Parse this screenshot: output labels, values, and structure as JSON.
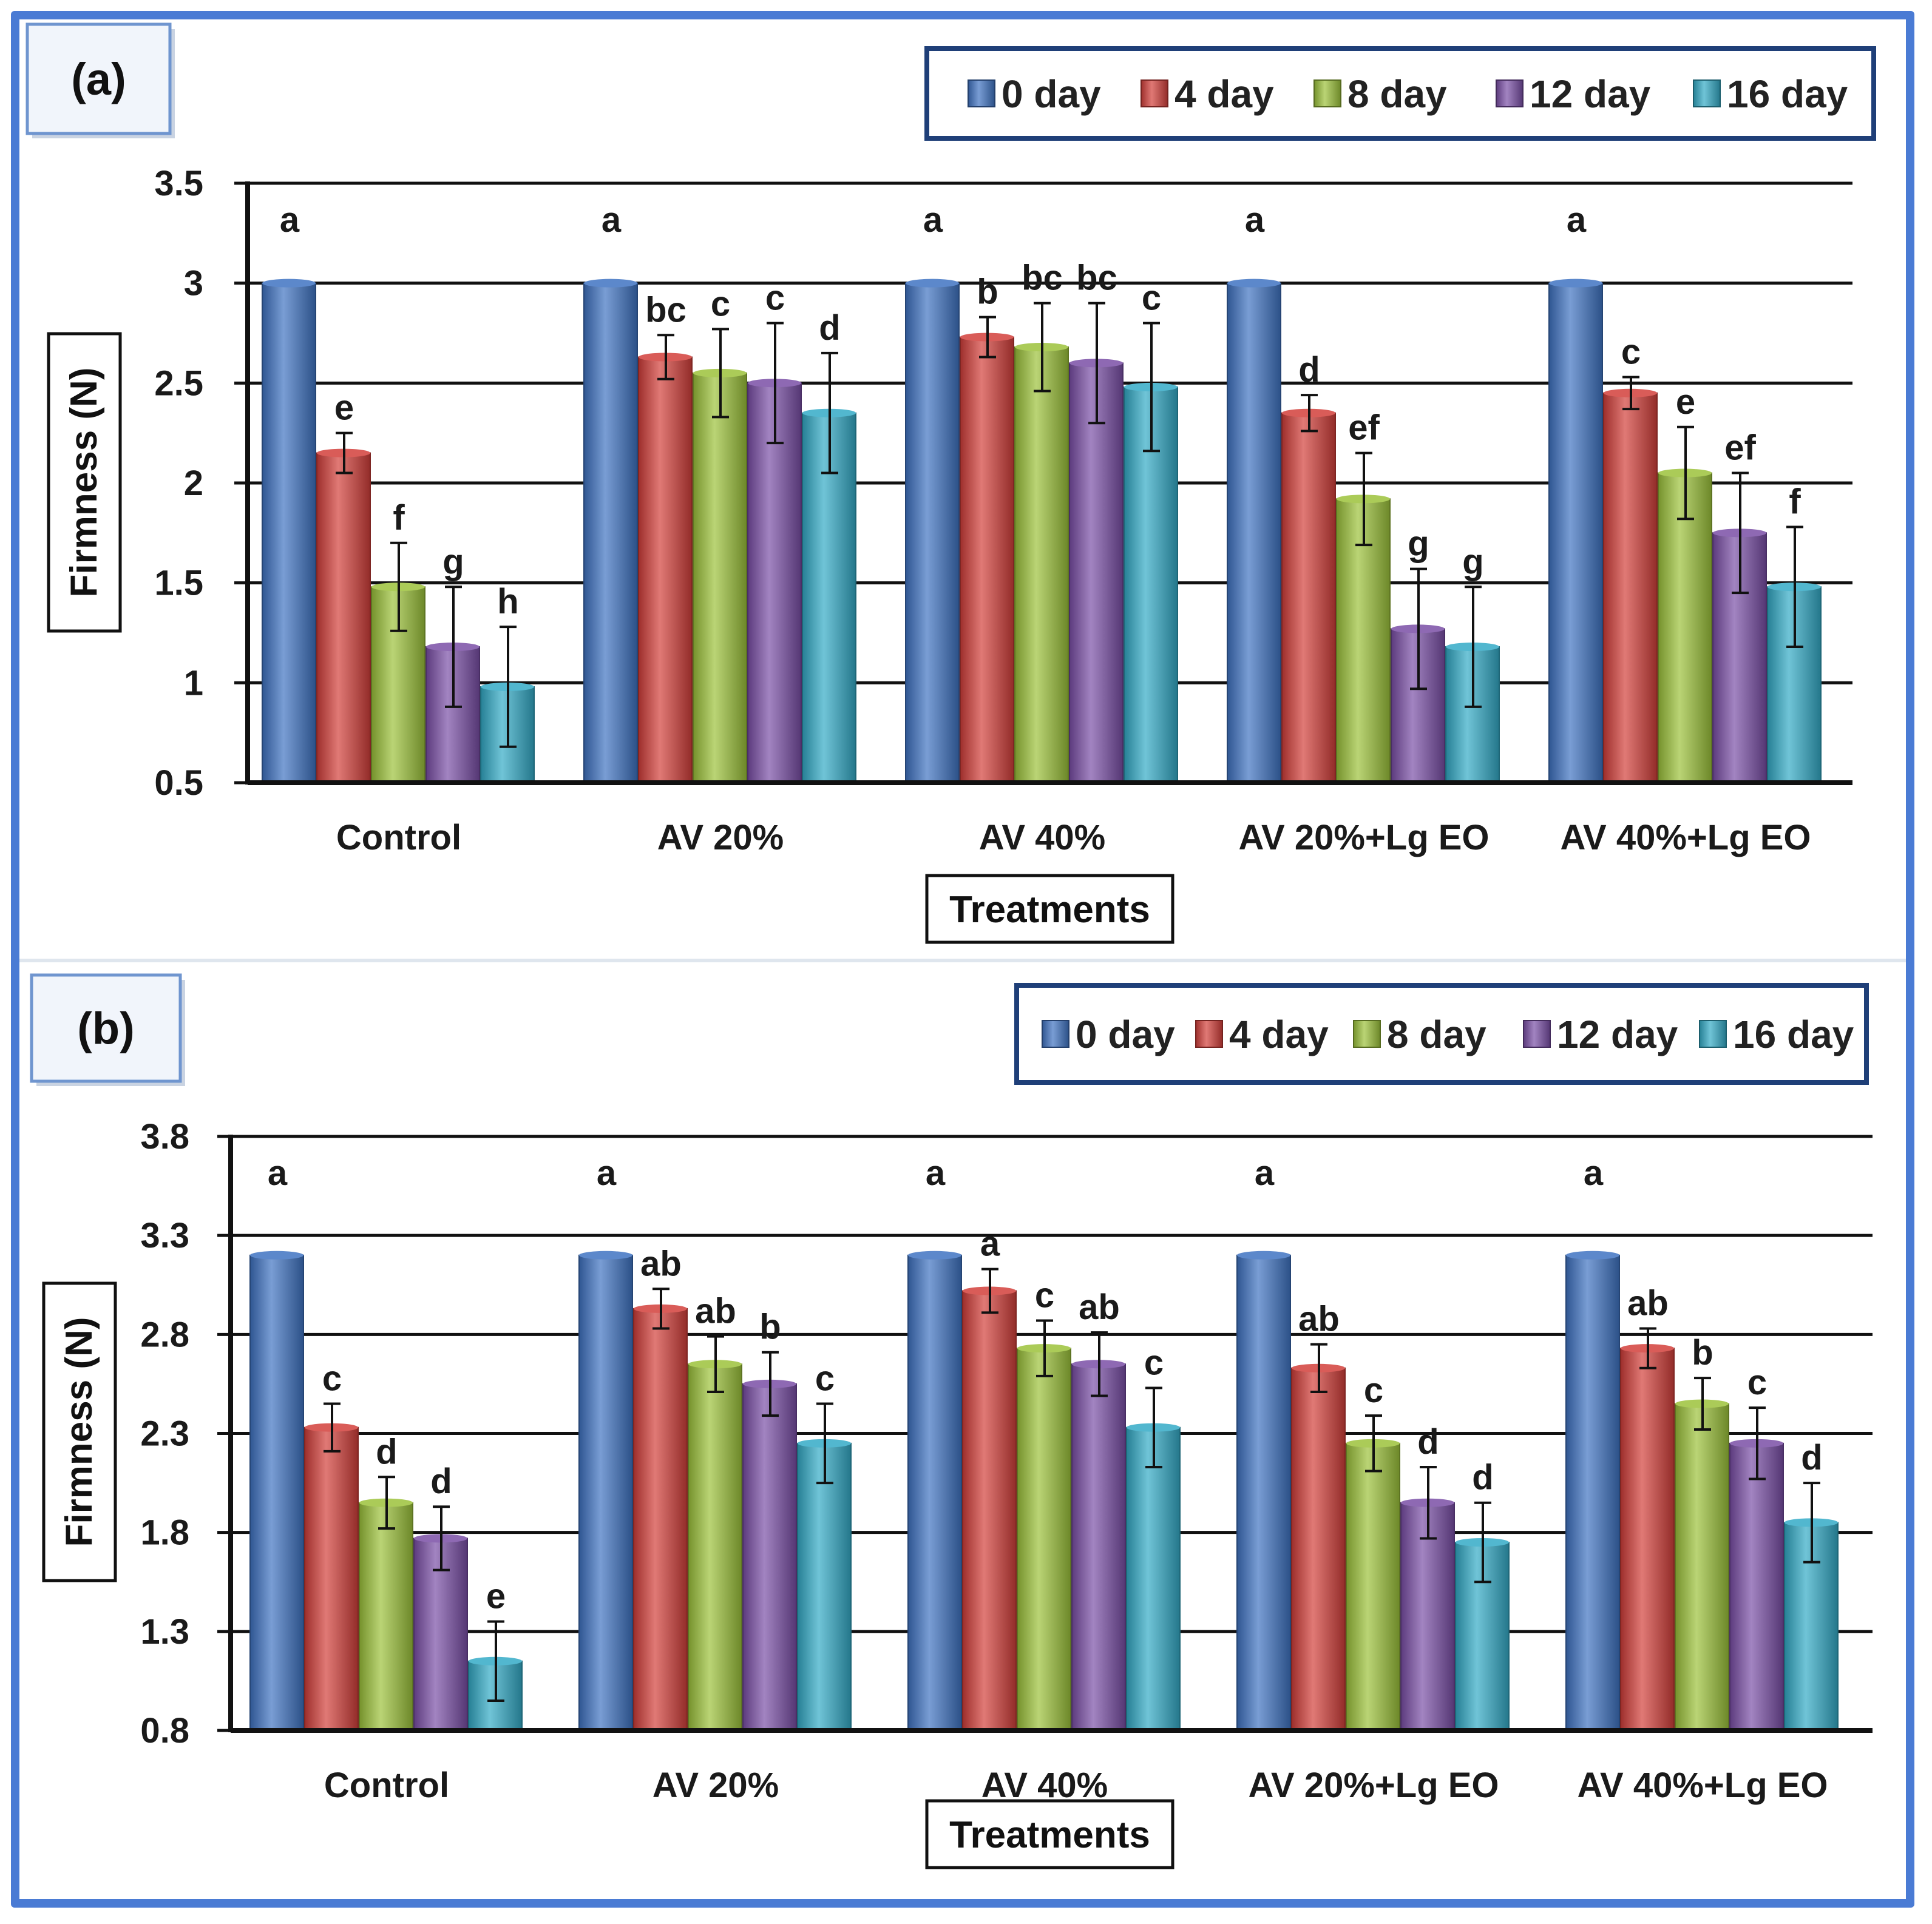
{
  "colors": {
    "frame": "#4a7bd4",
    "legend_border": "#1f3f78",
    "series": [
      "#3f73c2",
      "#d23f3a",
      "#9cc23a",
      "#7a4fa6",
      "#33aac6"
    ]
  },
  "chart_data": [
    {
      "type": "bar",
      "panel_label": "(a)",
      "ylabel": "Firmness (N)",
      "xlabel": "Treatments",
      "ylim": [
        0.5,
        3.5
      ],
      "yticks": [
        "0.5",
        "1",
        "1.5",
        "2",
        "2.5",
        "3",
        "3.5"
      ],
      "grid": true,
      "legend_position": "top-right",
      "categories": [
        "Control",
        "AV 20%",
        "AV 40%",
        "AV 20%+Lg EO",
        "AV 40%+Lg EO"
      ],
      "series": [
        {
          "name": "0 day",
          "values": [
            3.0,
            3.0,
            3.0,
            3.0,
            3.0
          ],
          "errors": [
            0,
            0,
            0,
            0,
            0
          ],
          "letters": [
            "a",
            "a",
            "a",
            "a",
            "a"
          ]
        },
        {
          "name": "4 day",
          "values": [
            2.15,
            2.63,
            2.73,
            2.35,
            2.45
          ],
          "errors": [
            0.1,
            0.11,
            0.1,
            0.09,
            0.08
          ],
          "letters": [
            "e",
            "bc",
            "b",
            "d",
            "c"
          ]
        },
        {
          "name": "8 day",
          "values": [
            1.48,
            2.55,
            2.68,
            1.92,
            2.05
          ],
          "errors": [
            0.22,
            0.22,
            0.22,
            0.23,
            0.23
          ],
          "letters": [
            "f",
            "c",
            "bc",
            "ef",
            "e"
          ]
        },
        {
          "name": "12 day",
          "values": [
            1.18,
            2.5,
            2.6,
            1.27,
            1.75
          ],
          "errors": [
            0.3,
            0.3,
            0.3,
            0.3,
            0.3
          ],
          "letters": [
            "g",
            "c",
            "bc",
            "g",
            "ef"
          ]
        },
        {
          "name": "16 day",
          "values": [
            0.98,
            2.35,
            2.48,
            1.18,
            1.48
          ],
          "errors": [
            0.3,
            0.3,
            0.32,
            0.3,
            0.3
          ],
          "letters": [
            "h",
            "d",
            "c",
            "g",
            "f"
          ]
        }
      ]
    },
    {
      "type": "bar",
      "panel_label": "(b)",
      "ylabel": "Firmness (N)",
      "xlabel": "Treatments",
      "ylim": [
        0.8,
        3.8
      ],
      "yticks": [
        "0.8",
        "1.3",
        "1.8",
        "2.3",
        "2.8",
        "3.3",
        "3.8"
      ],
      "grid": true,
      "legend_position": "top-right",
      "categories": [
        "Control",
        "AV 20%",
        "AV 40%",
        "AV 20%+Lg EO",
        "AV 40%+Lg EO"
      ],
      "series": [
        {
          "name": "0 day",
          "values": [
            3.2,
            3.2,
            3.2,
            3.2,
            3.2
          ],
          "errors": [
            0,
            0,
            0,
            0,
            0
          ],
          "letters": [
            "a",
            "a",
            "a",
            "a",
            "a"
          ]
        },
        {
          "name": "4 day",
          "values": [
            2.33,
            2.93,
            3.02,
            2.63,
            2.73
          ],
          "errors": [
            0.12,
            0.1,
            0.11,
            0.12,
            0.1
          ],
          "letters": [
            "c",
            "ab",
            "a",
            "ab",
            "ab"
          ]
        },
        {
          "name": "8 day",
          "values": [
            1.95,
            2.65,
            2.73,
            2.25,
            2.45
          ],
          "errors": [
            0.13,
            0.14,
            0.14,
            0.14,
            0.13
          ],
          "letters": [
            "d",
            "ab",
            "c",
            "c",
            "b"
          ]
        },
        {
          "name": "12 day",
          "values": [
            1.77,
            2.55,
            2.65,
            1.95,
            2.25
          ],
          "errors": [
            0.16,
            0.16,
            0.16,
            0.18,
            0.18
          ],
          "letters": [
            "d",
            "b",
            "ab",
            "d",
            "c"
          ]
        },
        {
          "name": "16 day",
          "values": [
            1.15,
            2.25,
            2.33,
            1.75,
            1.85
          ],
          "errors": [
            0.2,
            0.2,
            0.2,
            0.2,
            0.2
          ],
          "letters": [
            "e",
            "c",
            "c",
            "d",
            "d"
          ]
        }
      ]
    }
  ]
}
